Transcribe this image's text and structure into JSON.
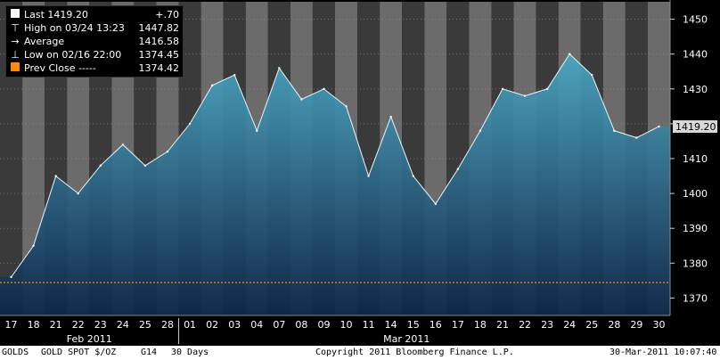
{
  "legend": {
    "last": {
      "label": "Last 1419.20",
      "value": "+.70",
      "color": "#ffffff"
    },
    "high": {
      "label": "High on 03/24 13:23",
      "value": "1447.82"
    },
    "average": {
      "label": "Average",
      "value": "1416.58"
    },
    "low": {
      "label": "Low on 02/16 22:00",
      "value": "1374.45"
    },
    "prev_close": {
      "label": "Prev Close -----",
      "value": "1374.42",
      "color": "#ff8c00"
    }
  },
  "footer": {
    "ticker": "GOLDS",
    "name": "GOLD SPOT $/OZ",
    "code": "G14",
    "period": "30 Days",
    "copyright": "Copyright 2011 Bloomberg Finance L.P.",
    "timestamp": "30-Mar-2011 10:07:40"
  },
  "chart_data": {
    "type": "area",
    "y_axis_side": "right",
    "ylim": [
      1365,
      1455
    ],
    "yticks": [
      1370,
      1380,
      1390,
      1400,
      1410,
      1420,
      1430,
      1440,
      1450
    ],
    "last_price_label": "1419.20",
    "prev_close_level": 1374.42,
    "categories": [
      "17",
      "18",
      "21",
      "22",
      "23",
      "24",
      "25",
      "28",
      "01",
      "02",
      "03",
      "04",
      "07",
      "08",
      "09",
      "10",
      "11",
      "14",
      "15",
      "16",
      "17",
      "18",
      "21",
      "22",
      "23",
      "24",
      "25",
      "28",
      "29",
      "30"
    ],
    "month_labels": [
      {
        "label": "Feb 2011",
        "start": 0,
        "end": 7
      },
      {
        "label": "Mar 2011",
        "start": 8,
        "end": 29
      }
    ],
    "values": [
      1376,
      1385,
      1405,
      1400,
      1408,
      1414,
      1408,
      1412,
      1420,
      1431,
      1434,
      1418,
      1436,
      1427,
      1430,
      1425,
      1405,
      1422,
      1405,
      1397,
      1407,
      1418,
      1430,
      1428,
      1430,
      1440,
      1434,
      1418,
      1416,
      1419.2
    ],
    "colors": {
      "area_top": "#4aa8c4",
      "area_bottom": "#0c2448",
      "band_a": "#3a3a3a",
      "band_b": "#6b6b6b",
      "prev_close_line": "#ff8c00"
    }
  }
}
